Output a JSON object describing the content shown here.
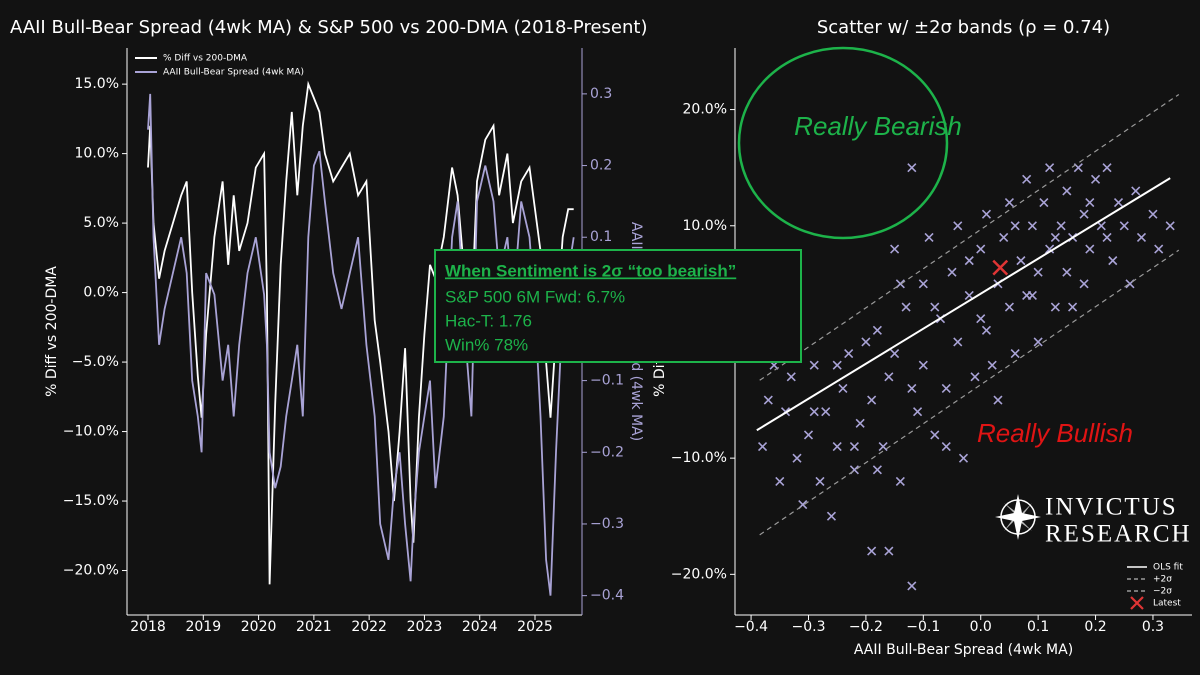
{
  "chart_data": [
    {
      "type": "line",
      "title": "AAII Bull-Bear Spread (4wk MA) & S&P 500 vs 200-DMA (2018-Present)",
      "ylabel": "% Diff vs 200-DMA",
      "y2label": "AAII Bull-Bear Spread (4wk MA)",
      "legend": "upper left",
      "x": [
        2018.0,
        2018.04,
        2018.1,
        2018.2,
        2018.3,
        2018.45,
        2018.6,
        2018.7,
        2018.8,
        2018.9,
        2018.97,
        2019.05,
        2019.2,
        2019.35,
        2019.45,
        2019.55,
        2019.65,
        2019.8,
        2019.95,
        2020.1,
        2020.15,
        2020.2,
        2020.3,
        2020.4,
        2020.5,
        2020.6,
        2020.7,
        2020.8,
        2020.9,
        2021.0,
        2021.1,
        2021.2,
        2021.35,
        2021.5,
        2021.65,
        2021.8,
        2021.95,
        2022.1,
        2022.2,
        2022.35,
        2022.45,
        2022.55,
        2022.65,
        2022.75,
        2022.8,
        2022.9,
        2023.0,
        2023.1,
        2023.2,
        2023.35,
        2023.5,
        2023.6,
        2023.75,
        2023.85,
        2023.95,
        2024.1,
        2024.25,
        2024.35,
        2024.5,
        2024.6,
        2024.75,
        2024.9,
        2025.0,
        2025.1,
        2025.2,
        2025.28,
        2025.38,
        2025.5,
        2025.6,
        2025.7
      ],
      "xlim": [
        2017.62,
        2025.85
      ],
      "xticks": [
        2018,
        2019,
        2020,
        2021,
        2022,
        2023,
        2024,
        2025
      ],
      "ylim": [
        -23.2,
        17.6
      ],
      "yticks": [
        {
          "value": 15,
          "label": "15.0%"
        },
        {
          "value": 10,
          "label": "10.0%"
        },
        {
          "value": 5,
          "label": "5.0%"
        },
        {
          "value": 0,
          "label": "0.0%"
        },
        {
          "value": -5,
          "label": "−5.0%"
        },
        {
          "value": -10,
          "label": "−10.0%"
        },
        {
          "value": -15,
          "label": "−15.0%"
        },
        {
          "value": -20,
          "label": "−20.0%"
        }
      ],
      "y2lim": [
        -0.427,
        0.364
      ],
      "y2ticks": [
        0.3,
        0.2,
        0.1,
        {
          "value": 0,
          "label": "0.0"
        },
        {
          "value": -0.1,
          "label": "−0.1"
        },
        {
          "value": -0.2,
          "label": "−0.2"
        },
        {
          "value": -0.3,
          "label": "−0.3"
        },
        {
          "value": -0.4,
          "label": "−0.4"
        }
      ],
      "series": [
        {
          "name": "% Diff vs 200-DMA",
          "color": "#ffffff",
          "values": [
            9,
            12,
            5,
            1,
            3,
            5,
            7,
            8,
            0,
            -6,
            -9,
            -3,
            4,
            8,
            2,
            7,
            3,
            5,
            9,
            10,
            0,
            -21,
            -8,
            2,
            8,
            13,
            7,
            12,
            15,
            14,
            13,
            10,
            8,
            9,
            10,
            7,
            8,
            -2,
            -5,
            -10,
            -15,
            -10,
            -4,
            -15,
            -18,
            -9,
            -3,
            2,
            1,
            4,
            9,
            7,
            0,
            -2,
            8,
            11,
            12,
            7,
            10,
            5,
            8,
            9,
            6,
            3,
            -5,
            -9,
            -3,
            4,
            6,
            6
          ]
        },
        {
          "name": "AAII Bull-Bear Spread (4wk MA)",
          "color": "#a9a3d6",
          "axis": "y2",
          "values": [
            0.25,
            0.3,
            0.1,
            -0.05,
            0,
            0.05,
            0.1,
            0.05,
            -0.1,
            -0.15,
            -0.2,
            0.05,
            0.02,
            -0.1,
            -0.05,
            -0.15,
            -0.05,
            0.05,
            0.1,
            0.02,
            -0.05,
            -0.2,
            -0.25,
            -0.22,
            -0.15,
            -0.1,
            -0.05,
            -0.15,
            0.1,
            0.2,
            0.22,
            0.15,
            0.05,
            0,
            0.05,
            0.1,
            -0.05,
            -0.15,
            -0.3,
            -0.35,
            -0.25,
            -0.2,
            -0.3,
            -0.38,
            -0.3,
            -0.2,
            -0.15,
            -0.1,
            -0.25,
            -0.15,
            0.1,
            0.15,
            -0.05,
            -0.15,
            0.15,
            0.2,
            0.15,
            0.05,
            0.1,
            0,
            0.15,
            0.1,
            0,
            -0.15,
            -0.35,
            -0.4,
            -0.2,
            0,
            0.05,
            0.1
          ]
        }
      ]
    },
    {
      "type": "scatter",
      "title": "Scatter w/ ±2σ bands (ρ = 0.74)",
      "xlabel": "AAII Bull-Bear Spread (4wk MA)",
      "ylabel": "% Diff vs 200-DMA",
      "legend": "lower right",
      "xlim": [
        -0.428,
        0.368
      ],
      "xticks": [
        {
          "value": -0.4,
          "label": "−0.4"
        },
        {
          "value": -0.3,
          "label": "−0.3"
        },
        {
          "value": -0.2,
          "label": "−0.2"
        },
        {
          "value": -0.1,
          "label": "−0.1"
        },
        {
          "value": 0,
          "label": "0.0"
        },
        0.1,
        0.2,
        0.3
      ],
      "ylim": [
        -23.5,
        25.3
      ],
      "yticks": [
        {
          "value": 20,
          "label": "20.0%"
        },
        {
          "value": 10,
          "label": "10.0%"
        },
        {
          "value": 0,
          "label": "0.0%"
        },
        {
          "value": -10,
          "label": "−10.0%"
        },
        {
          "value": -20,
          "label": "−20.0%"
        }
      ],
      "points": {
        "color": "#a9a3d6",
        "x": [
          -0.38,
          -0.37,
          -0.35,
          -0.34,
          -0.33,
          -0.32,
          -0.31,
          -0.3,
          -0.29,
          -0.28,
          -0.27,
          -0.26,
          -0.25,
          -0.24,
          -0.23,
          -0.22,
          -0.21,
          -0.2,
          -0.19,
          -0.19,
          -0.18,
          -0.17,
          -0.16,
          -0.15,
          -0.15,
          -0.14,
          -0.13,
          -0.12,
          -0.12,
          -0.11,
          -0.1,
          -0.1,
          -0.09,
          -0.08,
          -0.07,
          -0.06,
          -0.05,
          -0.04,
          -0.04,
          -0.03,
          -0.02,
          -0.01,
          0,
          0.01,
          0.01,
          0.02,
          0.03,
          0.04,
          0.05,
          0.05,
          0.06,
          0.07,
          0.08,
          0.08,
          0.09,
          0.1,
          0.1,
          0.11,
          0.12,
          0.12,
          0.13,
          0.14,
          0.15,
          0.15,
          0.16,
          0.17,
          0.18,
          0.18,
          0.19,
          0.2,
          0.21,
          0.22,
          0.23,
          0.24,
          0.25,
          0.26,
          0.28,
          0.3,
          0.33,
          -0.29,
          -0.25,
          -0.22,
          -0.18,
          -0.16,
          -0.14,
          -0.12,
          -0.08,
          -0.06,
          -0.02,
          0,
          0.03,
          0.06,
          0.09,
          0.13,
          0.16,
          0.19,
          0.22,
          0.27,
          0.31,
          -0.36
        ],
        "values": [
          -9,
          -5,
          -12,
          -6,
          -3,
          -10,
          -14,
          -8,
          -2,
          -12,
          -6,
          -15,
          -9,
          -4,
          -1,
          -11,
          -7,
          0,
          -18,
          -5,
          1,
          -9,
          -3,
          8,
          -1,
          -12,
          3,
          -21,
          15,
          -6,
          5,
          -2,
          9,
          -8,
          2,
          -4,
          6,
          0,
          10,
          -10,
          4,
          -3,
          8,
          1,
          11,
          -2,
          5,
          9,
          3,
          12,
          -1,
          7,
          14,
          4,
          10,
          0,
          6,
          12,
          8,
          15,
          3,
          10,
          6,
          13,
          9,
          15,
          5,
          11,
          8,
          14,
          10,
          15,
          7,
          12,
          10,
          5,
          9,
          11,
          10,
          -6,
          -2,
          -9,
          -11,
          -18,
          5,
          -4,
          3,
          -9,
          7,
          2,
          -5,
          10,
          4,
          9,
          3,
          12,
          9,
          13,
          8,
          -2
        ]
      },
      "lines": [
        {
          "name": "OLS fit",
          "color": "#ffffff",
          "style": "solid",
          "x": [
            -0.39,
            0.33
          ],
          "values": [
            -7.6,
            14.1
          ]
        },
        {
          "name": "+2σ",
          "color": "#9a9a9a",
          "style": "dashed",
          "x": [
            -0.385,
            0.345
          ],
          "values": [
            -3.3,
            21.3
          ]
        },
        {
          "name": "−2σ",
          "color": "#9a9a9a",
          "style": "dashed",
          "x": [
            -0.385,
            0.345
          ],
          "values": [
            -16.6,
            7.9
          ]
        }
      ],
      "latest": {
        "name": "Latest",
        "color": "#e03535",
        "x": 0.034,
        "value": 6.4
      },
      "annotations": [
        {
          "text": "Really Bearish",
          "color": "#1db34a"
        },
        {
          "text": "Really Bullish",
          "color": "#e01414"
        }
      ]
    }
  ],
  "annotation_box": {
    "title": "When Sentiment is 2σ “too bearish”",
    "color": "#1db34a",
    "lines": [
      "S&P 500 6M Fwd: 6.7%",
      "Hac-T: 1.76",
      "Win% 78%"
    ]
  },
  "logo": {
    "line1": "INVICTUS",
    "line2": "RESEARCH"
  }
}
